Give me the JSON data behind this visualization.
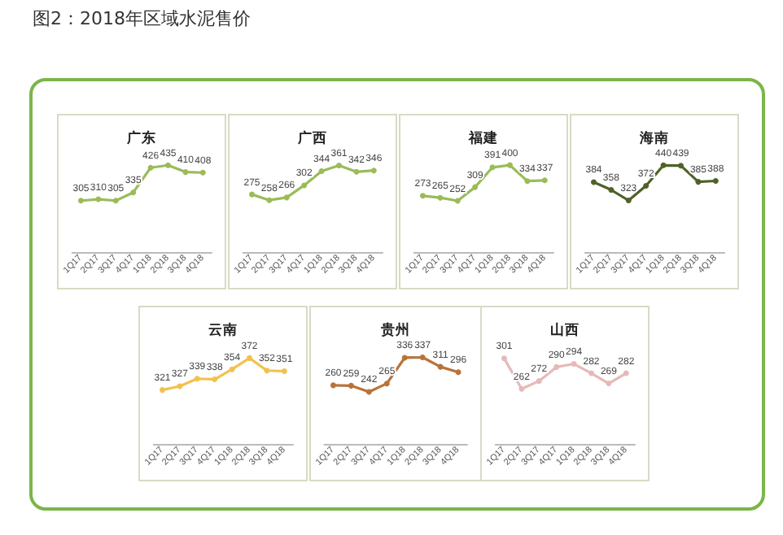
{
  "chart_data": [
    {
      "type": "line",
      "title": "广东",
      "annotations": [
        "图2：2018年区域水泥售价"
      ],
      "categories": [
        "1Q17",
        "2Q17",
        "3Q17",
        "4Q17",
        "1Q18",
        "2Q18",
        "3Q18",
        "4Q18"
      ],
      "series": [
        {
          "color": "#9bbb59",
          "values": [
            305,
            310,
            305,
            335,
            426,
            435,
            410,
            408
          ]
        }
      ],
      "data_labels": true,
      "marker": "circle"
    },
    {
      "type": "line",
      "title": "广西",
      "categories": [
        "1Q17",
        "2Q17",
        "3Q17",
        "4Q17",
        "1Q18",
        "2Q18",
        "3Q18",
        "4Q18"
      ],
      "series": [
        {
          "color": "#9bbb59",
          "values": [
            275,
            258,
            266,
            302,
            344,
            361,
            342,
            346
          ]
        }
      ],
      "data_labels": true,
      "marker": "circle"
    },
    {
      "type": "line",
      "title": "福建",
      "categories": [
        "1Q17",
        "2Q17",
        "3Q17",
        "4Q17",
        "1Q18",
        "2Q18",
        "3Q18",
        "4Q18"
      ],
      "series": [
        {
          "color": "#9bbb59",
          "values": [
            273,
            265,
            252,
            309,
            391,
            400,
            334,
            337
          ]
        }
      ],
      "data_labels": true,
      "marker": "circle"
    },
    {
      "type": "line",
      "title": "海南",
      "categories": [
        "1Q17",
        "2Q17",
        "3Q17",
        "4Q17",
        "1Q18",
        "2Q18",
        "3Q18",
        "4Q18"
      ],
      "series": [
        {
          "color": "#4f6228",
          "values": [
            384,
            358,
            323,
            372,
            440,
            439,
            385,
            388
          ]
        }
      ],
      "data_labels": true,
      "marker": "circle"
    },
    {
      "type": "line",
      "title": "云南",
      "categories": [
        "1Q17",
        "2Q17",
        "3Q17",
        "4Q17",
        "1Q18",
        "2Q18",
        "3Q18",
        "4Q18"
      ],
      "series": [
        {
          "color": "#f2c14e",
          "values": [
            321,
            327,
            339,
            338,
            354,
            372,
            352,
            351
          ]
        }
      ],
      "data_labels": true,
      "marker": "circle"
    },
    {
      "type": "line",
      "title": "贵州",
      "categories": [
        "1Q17",
        "2Q17",
        "3Q17",
        "4Q17",
        "1Q18",
        "2Q18",
        "3Q18",
        "4Q18"
      ],
      "series": [
        {
          "color": "#b8733a",
          "values": [
            260,
            259,
            242,
            265,
            336,
            337,
            311,
            296
          ]
        }
      ],
      "data_labels": true,
      "marker": "circle"
    },
    {
      "type": "line",
      "title": "山西",
      "categories": [
        "1Q17",
        "2Q17",
        "3Q17",
        "4Q17",
        "1Q18",
        "2Q18",
        "3Q18",
        "4Q18"
      ],
      "series": [
        {
          "color": "#e6b9b8",
          "values": [
            301,
            262,
            272,
            290,
            294,
            282,
            269,
            282
          ]
        }
      ],
      "data_labels": true,
      "marker": "circle"
    }
  ]
}
